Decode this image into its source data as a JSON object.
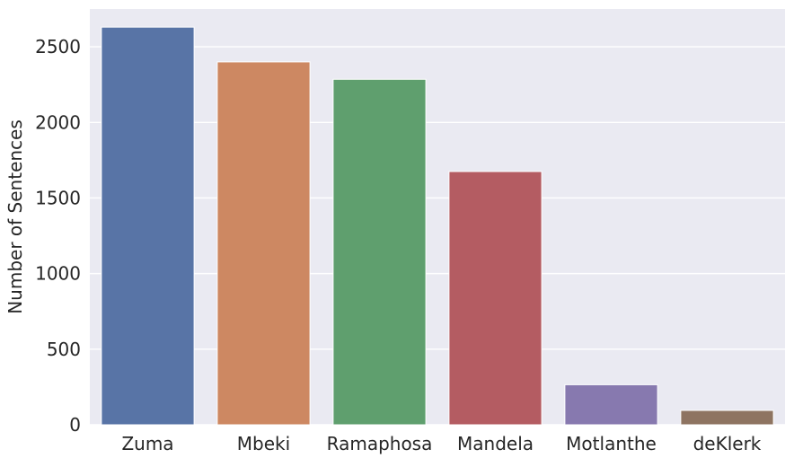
{
  "chart_data": {
    "type": "bar",
    "title": "",
    "xlabel": "",
    "ylabel": "Number of Sentences",
    "categories": [
      "Zuma",
      "Mbeki",
      "Ramaphosa",
      "Mandela",
      "Motlanthe",
      "deKlerk"
    ],
    "values": [
      2630,
      2400,
      2285,
      1675,
      265,
      95
    ],
    "colors": [
      "#5874a6",
      "#cd8862",
      "#5f9f6e",
      "#b45c62",
      "#8779af",
      "#8e7461"
    ],
    "ylim": [
      0,
      2750
    ],
    "yticks": [
      0,
      500,
      1000,
      1500,
      2000,
      2500
    ],
    "ytick_labels": [
      "0",
      "500",
      "1000",
      "1500",
      "2000",
      "2500"
    ],
    "grid": true,
    "background": "#eaeaf2",
    "grid_color": "#ffffff"
  }
}
